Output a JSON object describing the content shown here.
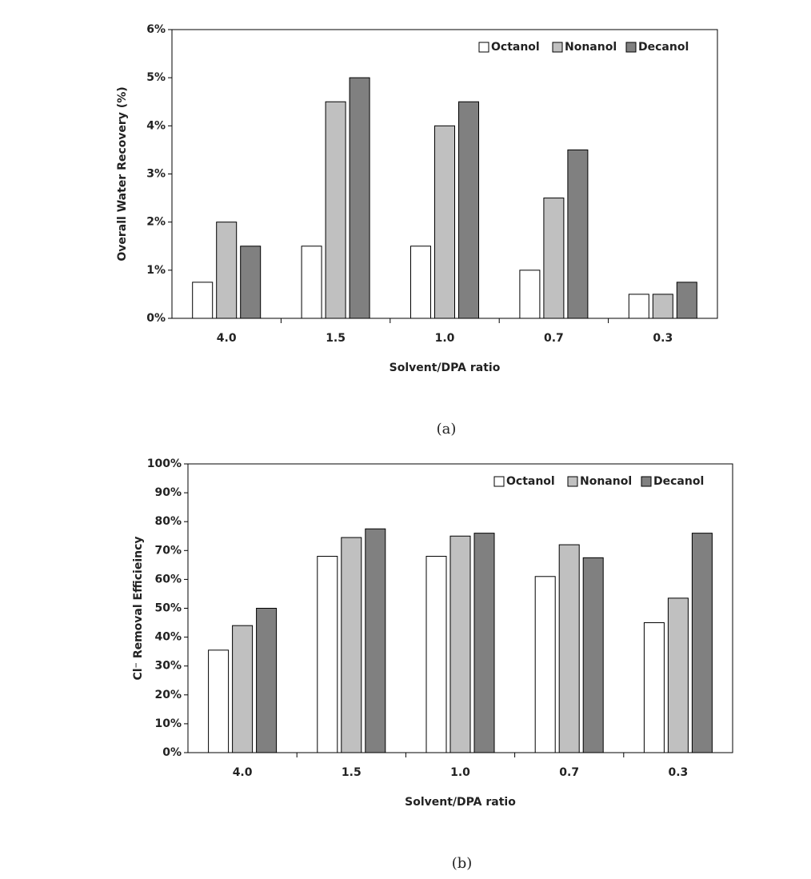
{
  "chart_data": [
    {
      "type": "bar",
      "caption": "(a)",
      "x_label": "Solvent/DPA ratio",
      "y_label": "Overall Water Recovery (%)",
      "categories": [
        "4.0",
        "1.5",
        "1.0",
        "0.7",
        "0.3"
      ],
      "series": [
        {
          "name": "Octanol",
          "color": "#ffffff",
          "values": [
            0.75,
            1.5,
            1.5,
            1.0,
            0.5
          ]
        },
        {
          "name": "Nonanol",
          "color": "#c0c0c0",
          "values": [
            2.0,
            4.5,
            4.0,
            2.5,
            0.5
          ]
        },
        {
          "name": "Decanol",
          "color": "#808080",
          "values": [
            1.5,
            5.0,
            4.5,
            3.5,
            0.75
          ]
        }
      ],
      "ylim": [
        0,
        6
      ],
      "yticks": [
        {
          "value": 0,
          "label": "0%"
        },
        {
          "value": 1,
          "label": "1%"
        },
        {
          "value": 2,
          "label": "2%"
        },
        {
          "value": 3,
          "label": "3%"
        },
        {
          "value": 4,
          "label": "4%"
        },
        {
          "value": 5,
          "label": "5%"
        },
        {
          "value": 6,
          "label": "6%"
        }
      ],
      "legend": "top-right",
      "grid": false
    },
    {
      "type": "bar",
      "caption": "(b)",
      "x_label": "Solvent/DPA ratio",
      "y_label": "Cl⁻ Removal Efficieincy",
      "categories": [
        "4.0",
        "1.5",
        "1.0",
        "0.7",
        "0.3"
      ],
      "series": [
        {
          "name": "Octanol",
          "color": "#ffffff",
          "values": [
            35.5,
            68,
            68,
            61,
            45
          ]
        },
        {
          "name": "Nonanol",
          "color": "#c0c0c0",
          "values": [
            44,
            74.5,
            75,
            72,
            53.5
          ]
        },
        {
          "name": "Decanol",
          "color": "#808080",
          "values": [
            50,
            77.5,
            76,
            67.5,
            76
          ]
        }
      ],
      "ylim": [
        0,
        100
      ],
      "yticks": [
        {
          "value": 0,
          "label": "0%"
        },
        {
          "value": 10,
          "label": "10%"
        },
        {
          "value": 20,
          "label": "20%"
        },
        {
          "value": 30,
          "label": "30%"
        },
        {
          "value": 40,
          "label": "40%"
        },
        {
          "value": 50,
          "label": "50%"
        },
        {
          "value": 60,
          "label": "60%"
        },
        {
          "value": 70,
          "label": "70%"
        },
        {
          "value": 80,
          "label": "80%"
        },
        {
          "value": 90,
          "label": "90%"
        },
        {
          "value": 100,
          "label": "100%"
        }
      ],
      "legend": "top-right",
      "grid": false
    }
  ]
}
